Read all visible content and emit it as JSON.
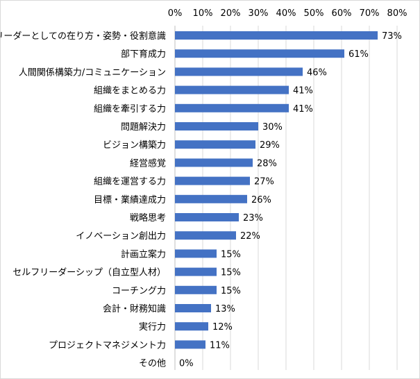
{
  "chart_data": {
    "type": "bar",
    "orientation": "horizontal",
    "title": "",
    "xlabel": "",
    "ylabel": "",
    "xlim": [
      0,
      80
    ],
    "ticks": [
      0,
      10,
      20,
      30,
      40,
      50,
      60,
      70,
      80
    ],
    "tick_labels": [
      "0%",
      "10%",
      "20%",
      "30%",
      "40%",
      "50%",
      "60%",
      "70%",
      "80%"
    ],
    "axis_position": "top",
    "grid": true,
    "bar_color": "#4472C4",
    "gridline_color": "#d9d9d9",
    "categories": [
      "リーダーとしての在り方・姿勢・役割意識",
      "部下育成力",
      "人間関係構築力/コミュニケーション",
      "組織をまとめる力",
      "組織を牽引する力",
      "問題解決力",
      "ビジョン構築力",
      "経営感覚",
      "組織を運営する力",
      "目標・業績達成力",
      "戦略思考",
      "イノベーション創出力",
      "計画立案力",
      "セルフリーダーシップ（自立型人材）",
      "コーチング力",
      "会計・財務知識",
      "実行力",
      "プロジェクトマネジメント力",
      "その他"
    ],
    "values": [
      73,
      61,
      46,
      41,
      41,
      30,
      29,
      28,
      27,
      26,
      23,
      22,
      15,
      15,
      15,
      13,
      12,
      11,
      0
    ],
    "value_labels": [
      "73%",
      "61%",
      "46%",
      "41%",
      "41%",
      "30%",
      "29%",
      "28%",
      "27%",
      "26%",
      "23%",
      "22%",
      "15%",
      "15%",
      "15%",
      "13%",
      "12%",
      "11%",
      "0%"
    ]
  }
}
